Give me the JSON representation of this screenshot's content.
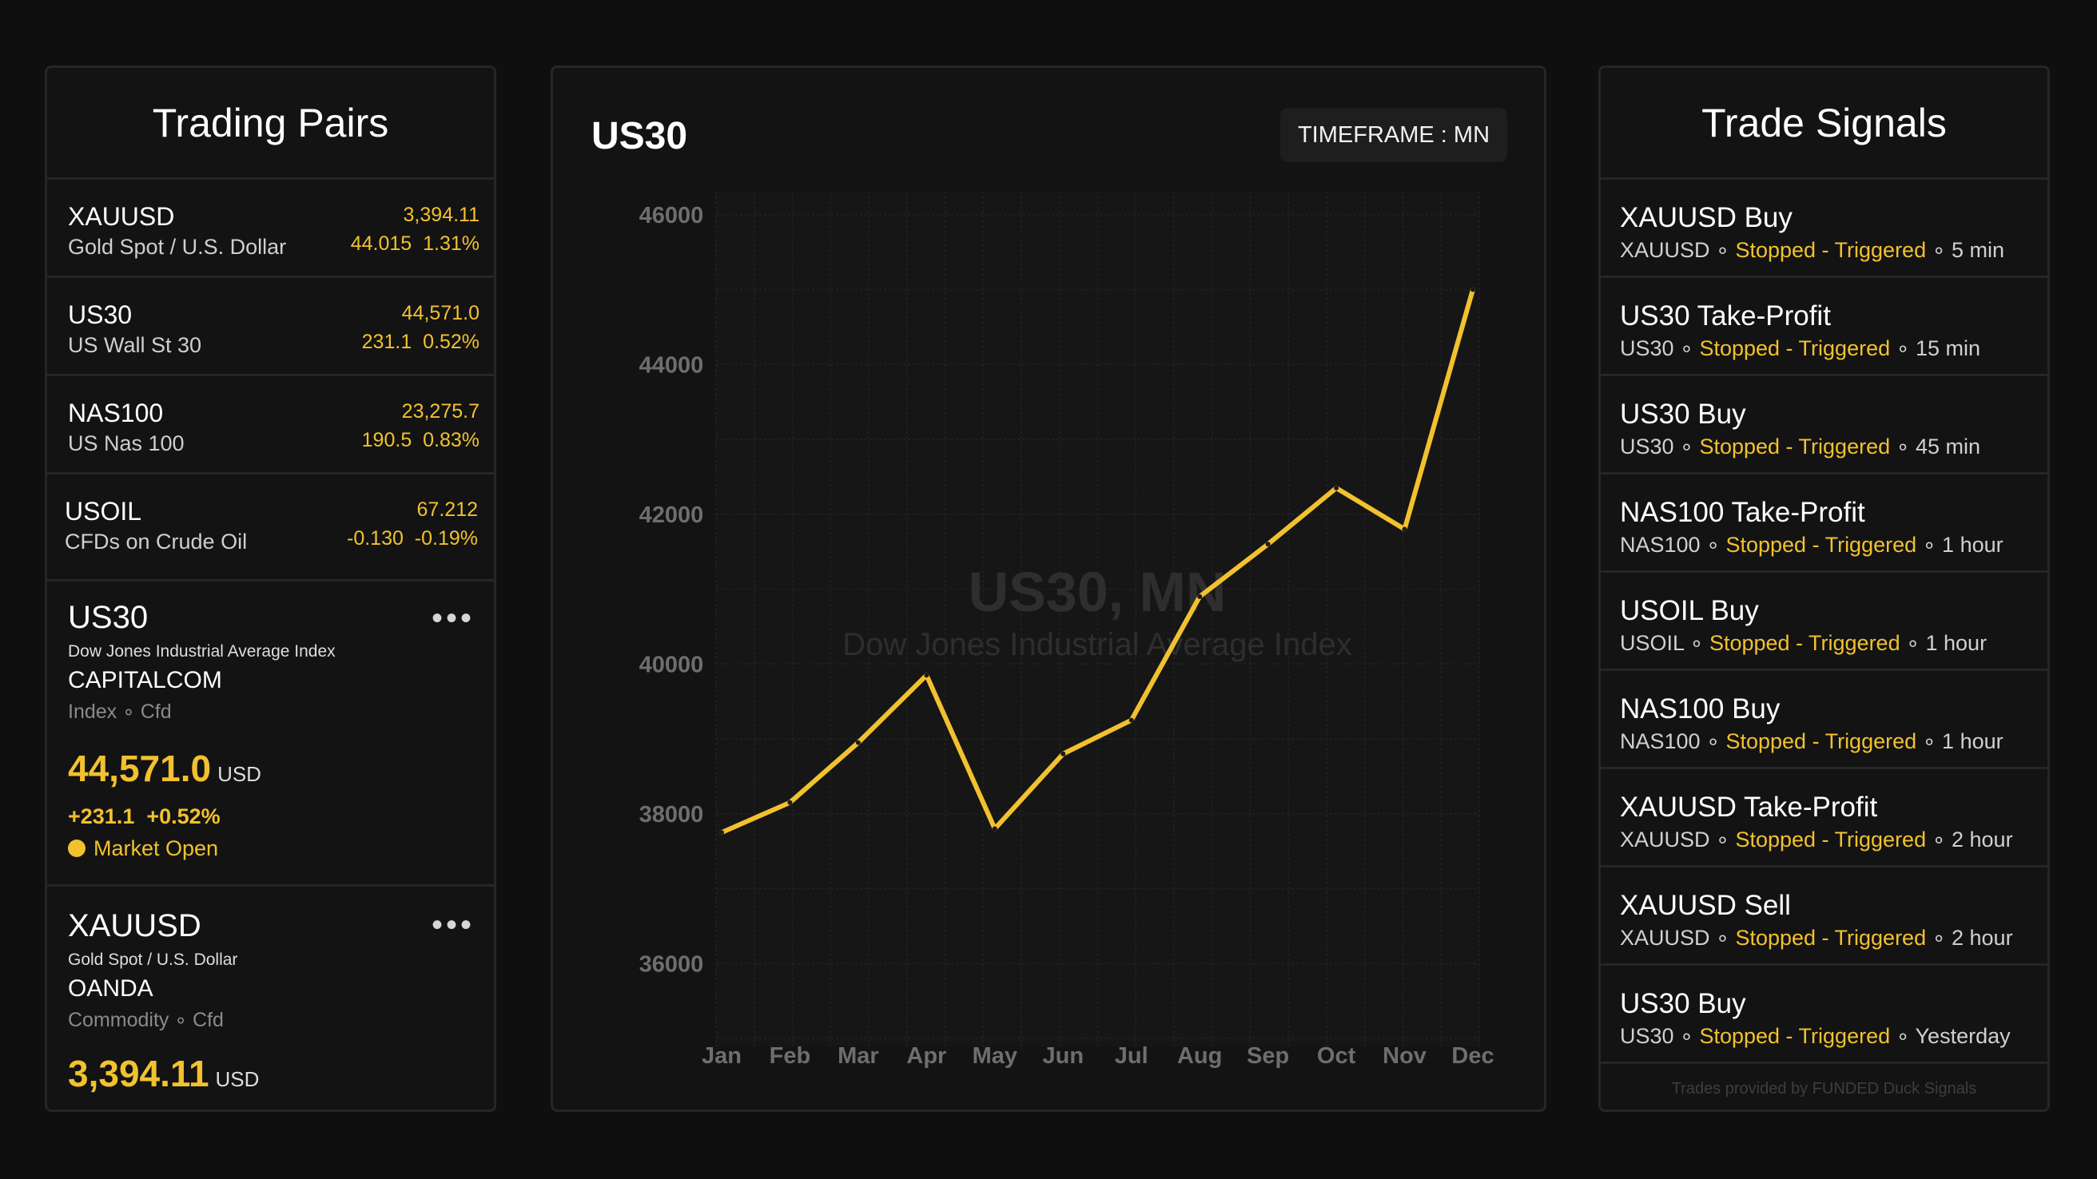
{
  "left_panel": {
    "title": "Trading Pairs",
    "pairs": [
      {
        "symbol": "XAUUSD",
        "name": "Gold Spot / U.S. Dollar",
        "price": "3,394.11",
        "change": "44.015  1.31%"
      },
      {
        "symbol": "US30",
        "name": "US Wall St 30",
        "price": "44,571.0",
        "change": "231.1  0.52%"
      },
      {
        "symbol": "NAS100",
        "name": "US Nas 100",
        "price": "23,275.7",
        "change": "190.5  0.83%"
      },
      {
        "symbol": "USOIL",
        "name": "CFDs on Crude Oil",
        "price": "67.212",
        "change": "-0.130  -0.19%"
      }
    ],
    "details": [
      {
        "symbol": "US30",
        "description": "Dow Jones Industrial Average Index",
        "broker": "CAPITALCOM",
        "category": "Index ∘ Cfd",
        "price": "44,571.0",
        "unit": "USD",
        "change": "+231.1  +0.52%",
        "status": "Market Open",
        "menu": "•••"
      },
      {
        "symbol": "XAUUSD",
        "description": "Gold Spot / U.S. Dollar",
        "broker": "OANDA",
        "category": "Commodity ∘ Cfd",
        "price": "3,394.11",
        "unit": "USD",
        "menu": "•••"
      }
    ]
  },
  "center": {
    "title": "US30",
    "timeframe": "TIMEFRAME : MN",
    "watermark_title": "US30, MN",
    "watermark_subtitle": "Dow Jones Industrial Average Index"
  },
  "chart_data": {
    "type": "line",
    "categories": [
      "Jan",
      "Feb",
      "Mar",
      "Apr",
      "May",
      "Jun",
      "Jul",
      "Aug",
      "Sep",
      "Oct",
      "Nov",
      "Dec"
    ],
    "series": [
      {
        "values": [
          37750,
          38150,
          38950,
          39850,
          37800,
          38800,
          39250,
          40900,
          41600,
          42350,
          41800,
          45000
        ]
      }
    ],
    "y_ticks": [
      36000,
      38000,
      40000,
      42000,
      44000,
      46000
    ],
    "ylim": [
      35000,
      46200
    ],
    "line_color": "#f2c12e",
    "grid": true
  },
  "right_panel": {
    "title": "Trade Signals",
    "signals": [
      {
        "title": "XAUUSD Buy",
        "symbol": "XAUUSD",
        "status": "Stopped - Triggered",
        "time": "5 min"
      },
      {
        "title": "US30 Take-Profit",
        "symbol": "US30",
        "status": "Stopped - Triggered",
        "time": "15 min"
      },
      {
        "title": "US30 Buy",
        "symbol": "US30",
        "status": "Stopped - Triggered",
        "time": "45 min"
      },
      {
        "title": "NAS100 Take-Profit",
        "symbol": "NAS100",
        "status": "Stopped - Triggered",
        "time": "1 hour"
      },
      {
        "title": "USOIL Buy",
        "symbol": "USOIL",
        "status": "Stopped - Triggered",
        "time": "1 hour"
      },
      {
        "title": "NAS100 Buy",
        "symbol": "NAS100",
        "status": "Stopped - Triggered",
        "time": "1 hour"
      },
      {
        "title": "XAUUSD Take-Profit",
        "symbol": "XAUUSD",
        "status": "Stopped - Triggered",
        "time": "2 hour"
      },
      {
        "title": "XAUUSD Sell",
        "symbol": "XAUUSD",
        "status": "Stopped - Triggered",
        "time": "2 hour"
      },
      {
        "title": "US30 Buy",
        "symbol": "US30",
        "status": "Stopped - Triggered",
        "time": "Yesterday"
      }
    ],
    "footer": "Trades provided by FUNDED Duck Signals"
  },
  "colors": {
    "accent": "#f2c12e",
    "background": "#0f0f0f",
    "panel": "#131313",
    "border": "#262626"
  }
}
